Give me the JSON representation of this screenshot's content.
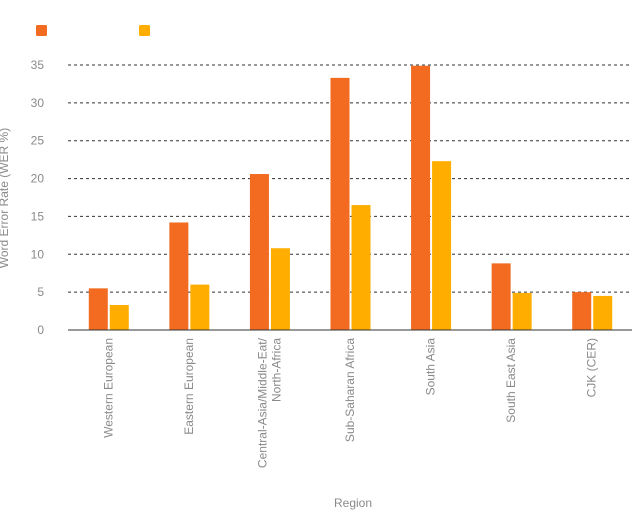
{
  "chart_data": {
    "type": "bar",
    "title": "",
    "xlabel": "Region",
    "ylabel": "Word Error Rate (WER %)",
    "ylim": [
      0,
      35
    ],
    "yticks": [
      0,
      5,
      10,
      15,
      20,
      25,
      30,
      35
    ],
    "grid": true,
    "legend_position": "top-left",
    "categories": [
      "Western European",
      "Eastern European",
      "Central-Asia/Middle-Eat/ North-Africa",
      "Sub-Saharan Africa",
      "South Asia",
      "South East Asia",
      "CJK (CER)"
    ],
    "category_lines": [
      [
        "Western European"
      ],
      [
        "Eastern European"
      ],
      [
        "Central-Asia/Middle-Eat/",
        "North-Africa"
      ],
      [
        "Sub-Saharan Africa"
      ],
      [
        "South Asia"
      ],
      [
        "South East Asia"
      ],
      [
        "CJK (CER)"
      ]
    ],
    "series": [
      {
        "name": "",
        "color": "#F26B21",
        "values": [
          5.5,
          14.2,
          20.6,
          33.3,
          34.9,
          8.8,
          5.0
        ]
      },
      {
        "name": "",
        "color": "#FFAE00",
        "values": [
          3.3,
          6.0,
          10.8,
          16.5,
          22.3,
          4.9,
          4.5
        ]
      }
    ]
  }
}
